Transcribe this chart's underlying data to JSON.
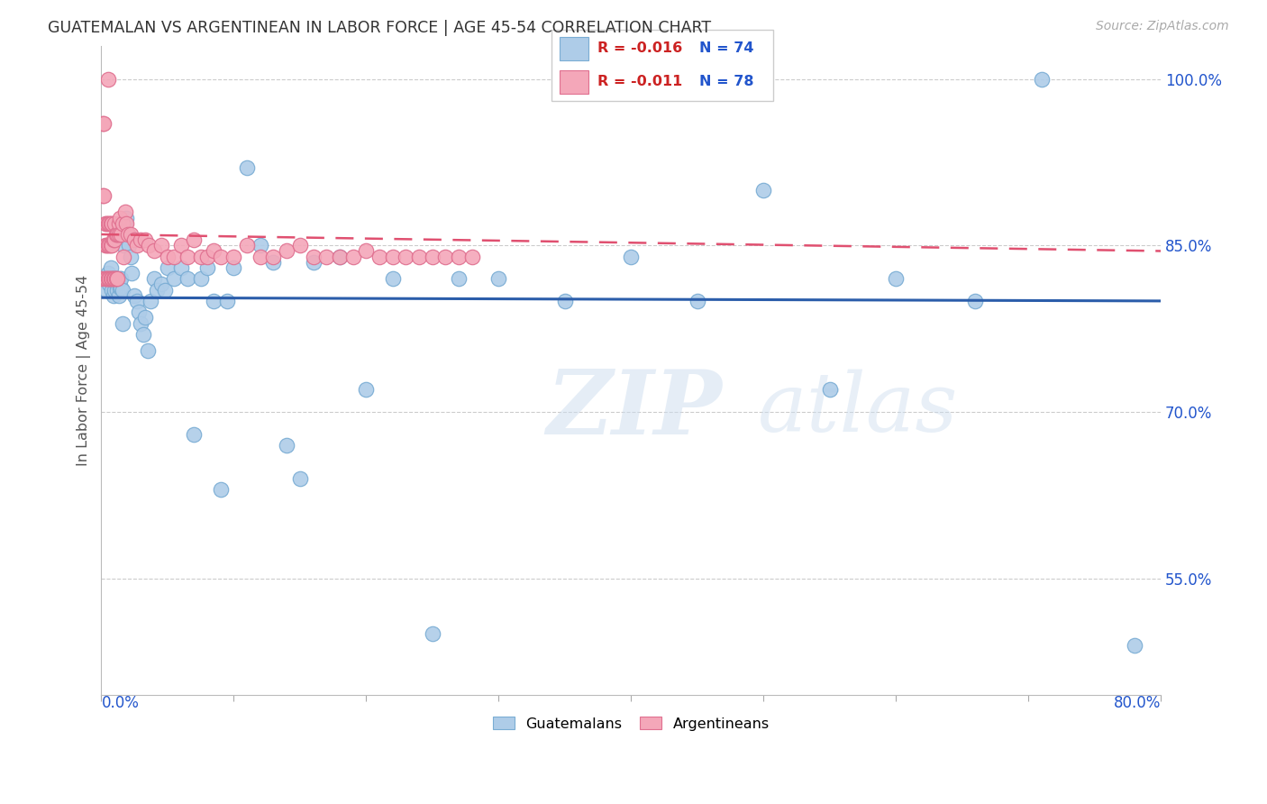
{
  "title": "GUATEMALAN VS ARGENTINEAN IN LABOR FORCE | AGE 45-54 CORRELATION CHART",
  "source": "Source: ZipAtlas.com",
  "ylabel": "In Labor Force | Age 45-54",
  "yticks": [
    0.55,
    0.7,
    0.85,
    1.0
  ],
  "ytick_labels": [
    "55.0%",
    "70.0%",
    "85.0%",
    "100.0%"
  ],
  "xlim": [
    0.0,
    0.8
  ],
  "ylim": [
    0.445,
    1.03
  ],
  "legend_blue_r": "-0.016",
  "legend_blue_n": "74",
  "legend_pink_r": "-0.011",
  "legend_pink_n": "78",
  "legend_blue_label": "Guatemalans",
  "legend_pink_label": "Argentineans",
  "blue_color": "#aecce8",
  "blue_edge": "#7aadd4",
  "pink_color": "#f4a7b9",
  "pink_edge": "#e07090",
  "blue_line_color": "#2b5daa",
  "pink_line_color": "#e05070",
  "blue_x": [
    0.003,
    0.004,
    0.005,
    0.006,
    0.007,
    0.008,
    0.008,
    0.009,
    0.009,
    0.01,
    0.01,
    0.011,
    0.011,
    0.012,
    0.012,
    0.013,
    0.013,
    0.014,
    0.014,
    0.015,
    0.015,
    0.016,
    0.016,
    0.017,
    0.018,
    0.019,
    0.02,
    0.021,
    0.022,
    0.023,
    0.025,
    0.027,
    0.028,
    0.03,
    0.032,
    0.033,
    0.035,
    0.037,
    0.04,
    0.042,
    0.045,
    0.048,
    0.05,
    0.055,
    0.06,
    0.065,
    0.07,
    0.075,
    0.08,
    0.085,
    0.09,
    0.095,
    0.1,
    0.11,
    0.12,
    0.13,
    0.14,
    0.15,
    0.16,
    0.18,
    0.2,
    0.22,
    0.25,
    0.27,
    0.3,
    0.35,
    0.4,
    0.45,
    0.5,
    0.55,
    0.6,
    0.66,
    0.71,
    0.78
  ],
  "blue_y": [
    0.82,
    0.81,
    0.825,
    0.815,
    0.83,
    0.81,
    0.82,
    0.805,
    0.82,
    0.81,
    0.82,
    0.815,
    0.82,
    0.81,
    0.82,
    0.805,
    0.818,
    0.812,
    0.82,
    0.812,
    0.82,
    0.78,
    0.81,
    0.85,
    0.87,
    0.875,
    0.86,
    0.85,
    0.84,
    0.825,
    0.805,
    0.8,
    0.79,
    0.78,
    0.77,
    0.785,
    0.755,
    0.8,
    0.82,
    0.81,
    0.815,
    0.81,
    0.83,
    0.82,
    0.83,
    0.82,
    0.68,
    0.82,
    0.83,
    0.8,
    0.63,
    0.8,
    0.83,
    0.92,
    0.85,
    0.835,
    0.67,
    0.64,
    0.835,
    0.84,
    0.72,
    0.82,
    0.5,
    0.82,
    0.82,
    0.8,
    0.84,
    0.8,
    0.9,
    0.72,
    0.82,
    0.8,
    1.0,
    0.49
  ],
  "pink_x": [
    0.0,
    0.001,
    0.001,
    0.002,
    0.002,
    0.003,
    0.003,
    0.003,
    0.004,
    0.004,
    0.004,
    0.005,
    0.005,
    0.005,
    0.005,
    0.006,
    0.006,
    0.006,
    0.007,
    0.007,
    0.007,
    0.008,
    0.008,
    0.008,
    0.009,
    0.009,
    0.01,
    0.01,
    0.01,
    0.011,
    0.011,
    0.012,
    0.012,
    0.013,
    0.013,
    0.014,
    0.015,
    0.016,
    0.017,
    0.018,
    0.019,
    0.02,
    0.022,
    0.025,
    0.027,
    0.03,
    0.033,
    0.036,
    0.04,
    0.045,
    0.05,
    0.055,
    0.06,
    0.065,
    0.07,
    0.075,
    0.08,
    0.085,
    0.09,
    0.1,
    0.11,
    0.12,
    0.13,
    0.14,
    0.15,
    0.16,
    0.17,
    0.18,
    0.19,
    0.2,
    0.21,
    0.22,
    0.23,
    0.24,
    0.25,
    0.26,
    0.27,
    0.28
  ],
  "pink_y": [
    0.82,
    0.96,
    0.895,
    0.96,
    0.895,
    0.82,
    0.85,
    0.87,
    0.82,
    0.85,
    0.87,
    0.82,
    0.85,
    0.87,
    1.0,
    0.82,
    0.85,
    0.87,
    0.82,
    0.85,
    0.87,
    0.82,
    0.85,
    0.87,
    0.82,
    0.855,
    0.82,
    0.855,
    0.87,
    0.82,
    0.86,
    0.82,
    0.86,
    0.87,
    0.86,
    0.875,
    0.86,
    0.87,
    0.84,
    0.88,
    0.87,
    0.86,
    0.86,
    0.855,
    0.85,
    0.855,
    0.855,
    0.85,
    0.845,
    0.85,
    0.84,
    0.84,
    0.85,
    0.84,
    0.855,
    0.84,
    0.84,
    0.845,
    0.84,
    0.84,
    0.85,
    0.84,
    0.84,
    0.845,
    0.85,
    0.84,
    0.84,
    0.84,
    0.84,
    0.845,
    0.84,
    0.84,
    0.84,
    0.84,
    0.84,
    0.84,
    0.84,
    0.84
  ],
  "blue_trend_x": [
    0.0,
    0.8
  ],
  "blue_trend_y": [
    0.803,
    0.8
  ],
  "pink_trend_x": [
    0.0,
    0.8
  ],
  "pink_trend_y": [
    0.86,
    0.845
  ]
}
